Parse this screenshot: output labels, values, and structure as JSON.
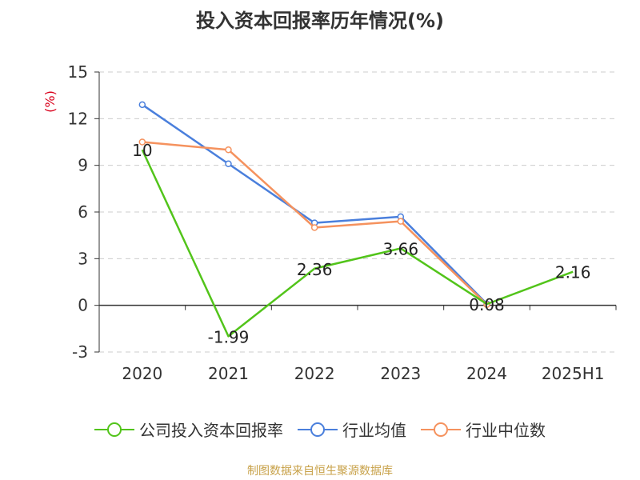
{
  "title": "投入资本回报率历年情况(%)",
  "footer": "制图数据来自恒生聚源数据库",
  "legend": [
    {
      "label": "公司投入资本回报率",
      "color": "#52c41a"
    },
    {
      "label": "行业均值",
      "color": "#4a7fdc"
    },
    {
      "label": "行业中位数",
      "color": "#f5925e"
    }
  ],
  "chart_data": {
    "type": "line",
    "title": "投入资本回报率历年情况(%)",
    "ylabel": "(%)",
    "ylabel_color": "#d9001b",
    "categories": [
      "2020",
      "2021",
      "2022",
      "2023",
      "2024",
      "2025H1"
    ],
    "ylim": [
      -3,
      15
    ],
    "yticks": [
      -3,
      0,
      3,
      6,
      9,
      12,
      15
    ],
    "grid": true,
    "legend_position": "bottom",
    "series": [
      {
        "name": "公司投入资本回报率",
        "color": "#52c41a",
        "values": [
          10,
          -1.99,
          2.36,
          3.66,
          0.08,
          2.16
        ],
        "labels": [
          "10",
          "-1.99",
          "2.36",
          "3.66",
          "0.08",
          "2.16"
        ],
        "show_points": false
      },
      {
        "name": "行业均值",
        "color": "#4a7fdc",
        "values": [
          12.9,
          9.1,
          5.3,
          5.7,
          0.1,
          null
        ],
        "show_points": true
      },
      {
        "name": "行业中位数",
        "color": "#f5925e",
        "values": [
          10.5,
          10.0,
          5.0,
          5.4,
          0.05,
          null
        ],
        "show_points": true
      }
    ]
  }
}
